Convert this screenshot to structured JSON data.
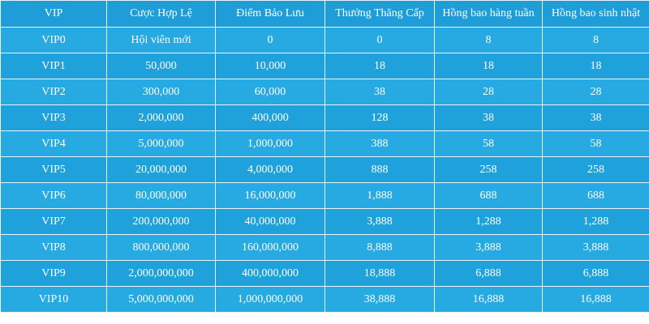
{
  "table": {
    "header": [
      "VIP",
      "Cược Hợp Lệ",
      "Điểm Bảo Lưu",
      "Thưởng Thăng Cấp",
      "Hồng bao hàng tuần",
      "Hồng bao sinh nhật"
    ],
    "rows": [
      [
        "VIP0",
        "Hội viên mới",
        "0",
        "0",
        "8",
        "8"
      ],
      [
        "VIP1",
        "50,000",
        "10,000",
        "18",
        "18",
        "18"
      ],
      [
        "VIP2",
        "300,000",
        "60,000",
        "38",
        "28",
        "28"
      ],
      [
        "VIP3",
        "2,000,000",
        "400,000",
        "128",
        "38",
        "38"
      ],
      [
        "VIP4",
        "5,000,000",
        "1,000,000",
        "388",
        "58",
        "58"
      ],
      [
        "VIP5",
        "20,000,000",
        "4,000,000",
        "888",
        "258",
        "258"
      ],
      [
        "VIP6",
        "80,000,000",
        "16,000,000",
        "1,888",
        "688",
        "688"
      ],
      [
        "VIP7",
        "200,000,000",
        "40,000,000",
        "3,888",
        "1,288",
        "1,288"
      ],
      [
        "VIP8",
        "800,000,000",
        "160,000,000",
        "8,888",
        "3,888",
        "3,888"
      ],
      [
        "VIP9",
        "2,000,000,000",
        "400,000,000",
        "18,888",
        "6,888",
        "6,888"
      ],
      [
        "VIP10",
        "5,000,000,000",
        "1,000,000,000",
        "38,888",
        "16,888",
        "16,888"
      ]
    ]
  }
}
